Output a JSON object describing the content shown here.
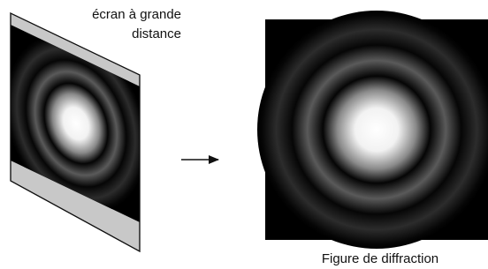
{
  "screen_label": [
    "écran à grande",
    "distance"
  ],
  "figure_label": "Figure de diffraction"
}
